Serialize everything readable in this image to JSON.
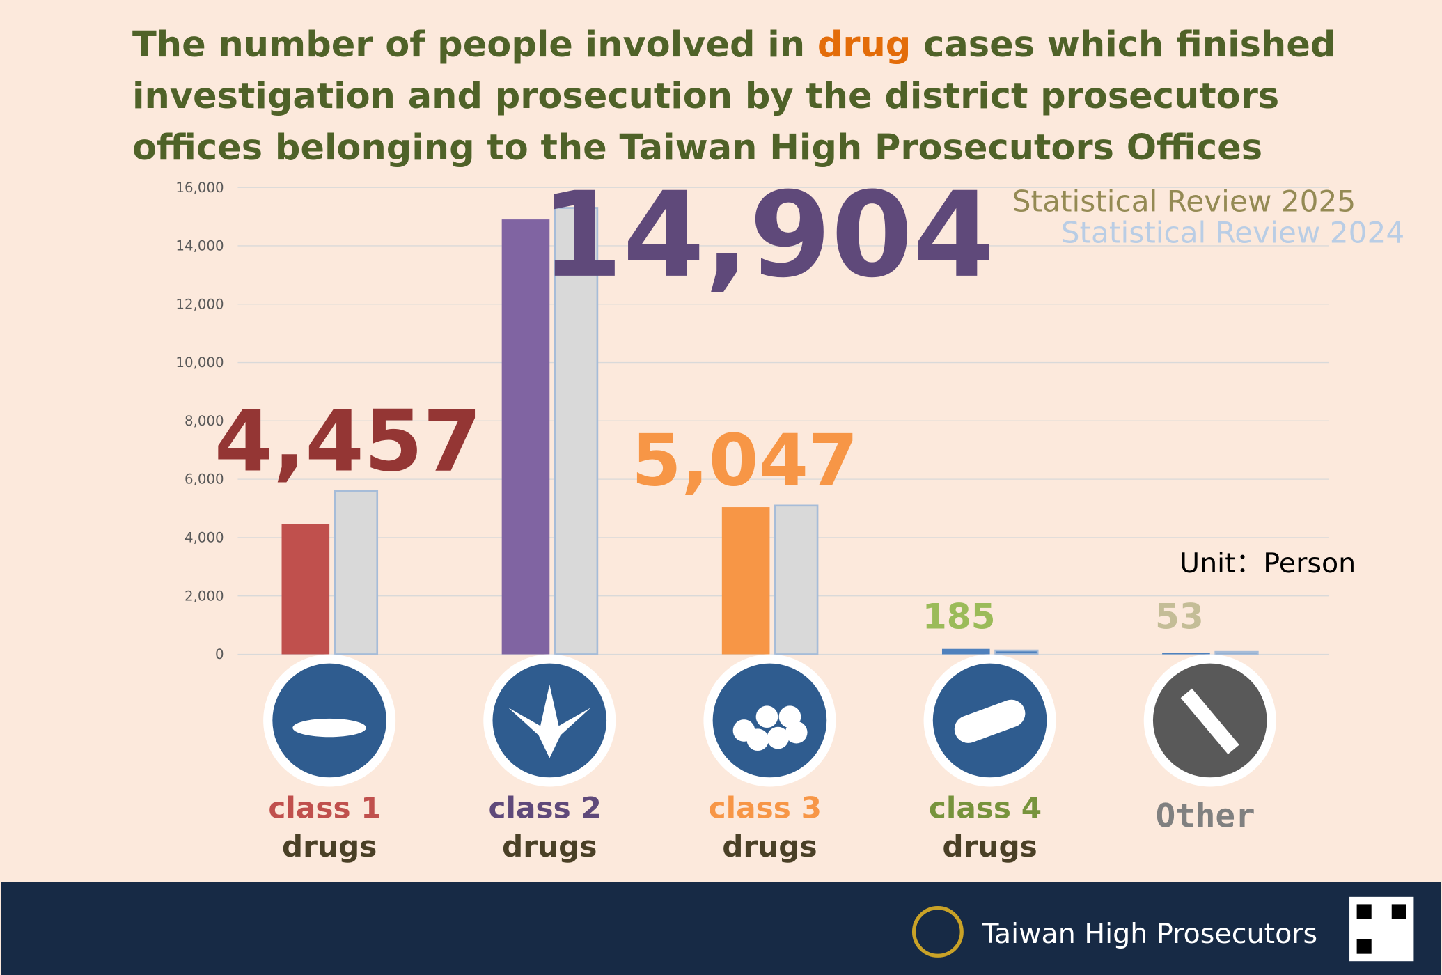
{
  "chart_data": {
    "type": "bar",
    "title": [
      "The number of people involved in ",
      "drug",
      " cases which finished investigation and prosecution by the district prosecutors offices belonging to the Taiwan High Prosecutors Offices"
    ],
    "categories": [
      [
        "class 1",
        "drugs"
      ],
      [
        "class 2",
        "drugs"
      ],
      [
        "class 3",
        "drugs"
      ],
      [
        "class 4",
        "drugs"
      ],
      [
        "Other"
      ]
    ],
    "category_colors": [
      "#c0504d",
      "#5f497a",
      "#f79646",
      "#77933c",
      "#808080"
    ],
    "series": [
      {
        "name": "Statistical Review 2025",
        "legend_color": "#948a54",
        "colors": [
          "#c0504d",
          "#8064a2",
          "#f79646",
          "#4f81bd",
          "#4f81bd"
        ],
        "values": [
          4457,
          14904,
          5047,
          185,
          53
        ],
        "value_labels": [
          "4,457",
          "14,904",
          "5,047",
          "185",
          "53"
        ],
        "label_colors": [
          "#943634",
          "#5f497a",
          "#f79646",
          "#9bbb59",
          "#c4bd97"
        ]
      },
      {
        "name": "Statistical Review 2024",
        "legend_color": "#b9cde5",
        "colors": [
          "#d9d9d9",
          "#d9d9d9",
          "#d9d9d9",
          "#4f81bd",
          "#4f81bd"
        ],
        "values": [
          5600,
          15300,
          5100,
          130,
          80
        ]
      }
    ],
    "ylim": [
      0,
      16000
    ],
    "yticks": [
      0,
      {
        "value": 2000,
        "label": "2,000"
      },
      {
        "value": 4000,
        "label": "4,000"
      },
      {
        "value": 6000,
        "label": "6,000"
      },
      {
        "value": 8000,
        "label": "8,000"
      },
      {
        "value": 10000,
        "label": "10,000"
      },
      {
        "value": 12000,
        "label": "12,000"
      },
      {
        "value": 14000,
        "label": "14,000"
      },
      {
        "value": 16000,
        "label": "16,000"
      }
    ],
    "grid": true,
    "unit": "Unit：Person",
    "footer": "Taiwan High Prosecutors"
  }
}
